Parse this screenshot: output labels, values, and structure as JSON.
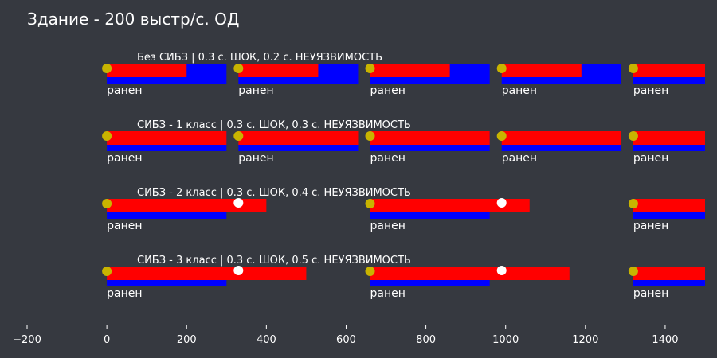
{
  "chart_data": {
    "type": "timeline",
    "title": "Здание - 200 выстр/с. ОД",
    "xlim": [
      -200,
      1500
    ],
    "xticks": [
      -200,
      0,
      200,
      400,
      600,
      800,
      1000,
      1200,
      1400
    ],
    "xtick_labels": [
      "−200",
      "0",
      "200",
      "400",
      "600",
      "800",
      "1000",
      "1200",
      "1400"
    ],
    "grid": false,
    "colors": {
      "background": "#363940",
      "shock_bar": "#0000ff",
      "invuln_bar": "#ff0000",
      "hit_marker": "#c8b400",
      "blocked_marker": "#ffffff",
      "text": "#ffffff"
    },
    "rows": [
      {
        "title": "Без СИБЗ | 0.3 с. ШОК, 0.2 с. НЕУЯЗВИМОСТЬ",
        "shock": [
          [
            0,
            300
          ],
          [
            330,
            630
          ],
          [
            660,
            960
          ],
          [
            990,
            1290
          ],
          [
            1320,
            1500
          ]
        ],
        "invuln": [
          [
            0,
            200
          ],
          [
            330,
            530
          ],
          [
            660,
            860
          ],
          [
            990,
            1190
          ],
          [
            1320,
            1500
          ]
        ],
        "hits": [
          0,
          330,
          660,
          990,
          1320
        ],
        "hit_labels": [
          "ранен",
          "ранен",
          "ранен",
          "ранен",
          "ранен"
        ],
        "blocked": []
      },
      {
        "title": "СИБЗ - 1 класс | 0.3 с. ШОК, 0.3 с. НЕУЯЗВИМОСТЬ",
        "shock": [
          [
            0,
            300
          ],
          [
            330,
            630
          ],
          [
            660,
            960
          ],
          [
            990,
            1290
          ],
          [
            1320,
            1500
          ]
        ],
        "invuln": [
          [
            0,
            300
          ],
          [
            330,
            630
          ],
          [
            660,
            960
          ],
          [
            990,
            1290
          ],
          [
            1320,
            1500
          ]
        ],
        "hits": [
          0,
          330,
          660,
          990,
          1320
        ],
        "hit_labels": [
          "ранен",
          "ранен",
          "ранен",
          "ранен",
          "ранен"
        ],
        "blocked": []
      },
      {
        "title": "СИБЗ - 2 класс | 0.3 с. ШОК, 0.4 с. НЕУЯЗВИМОСТЬ",
        "shock": [
          [
            0,
            300
          ],
          [
            660,
            960
          ],
          [
            1320,
            1500
          ]
        ],
        "invuln": [
          [
            0,
            400
          ],
          [
            660,
            1060
          ],
          [
            1320,
            1500
          ]
        ],
        "hits": [
          0,
          660,
          1320
        ],
        "hit_labels": [
          "ранен",
          "ранен",
          "ранен"
        ],
        "blocked": [
          330,
          990
        ]
      },
      {
        "title": "СИБЗ - 3 класс | 0.3 с. ШОК, 0.5 с. НЕУЯЗВИМОСТЬ",
        "shock": [
          [
            0,
            300
          ],
          [
            660,
            960
          ],
          [
            1320,
            1500
          ]
        ],
        "invuln": [
          [
            0,
            500
          ],
          [
            660,
            1160
          ],
          [
            1320,
            1500
          ]
        ],
        "hits": [
          0,
          660,
          1320
        ],
        "hit_labels": [
          "ранен",
          "ранен",
          "ранен"
        ],
        "blocked": [
          330,
          990
        ]
      }
    ]
  }
}
